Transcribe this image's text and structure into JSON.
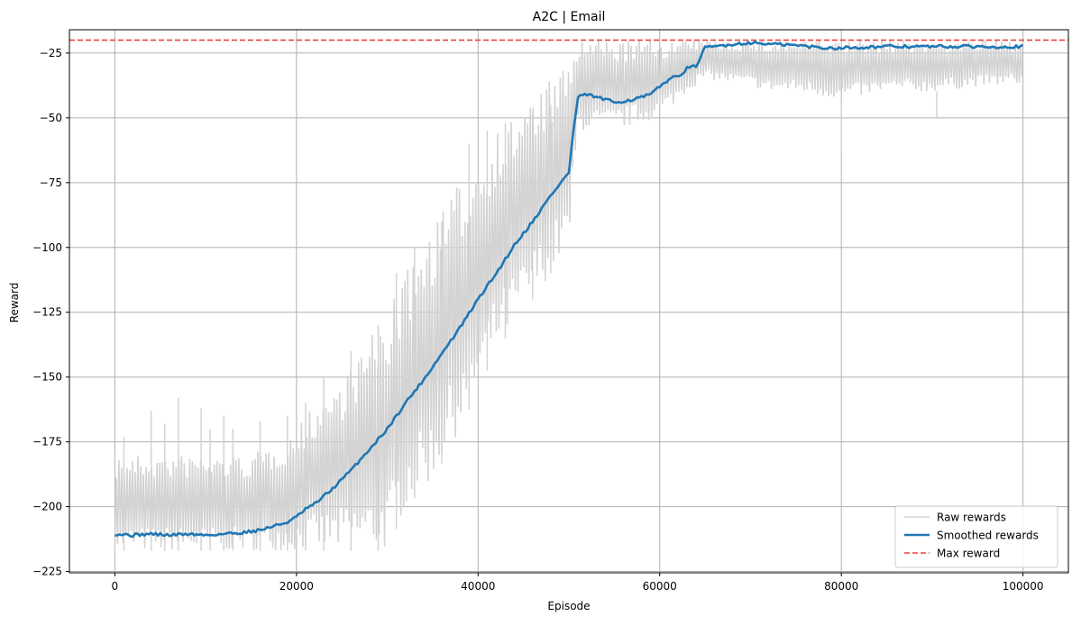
{
  "chart_data": {
    "type": "line",
    "title": "A2C | Email",
    "xlabel": "Episode",
    "ylabel": "Reward",
    "xlim": [
      -5000,
      105000
    ],
    "ylim": [
      -225.5,
      -16
    ],
    "xticks": [
      0,
      20000,
      40000,
      60000,
      80000,
      100000
    ],
    "xtick_labels": [
      "0",
      "20000",
      "40000",
      "60000",
      "80000",
      "100000"
    ],
    "yticks": [
      -225,
      -200,
      -175,
      -150,
      -125,
      -100,
      -75,
      -50,
      -25
    ],
    "ytick_labels": [
      "−225",
      "−200",
      "−175",
      "−150",
      "−125",
      "−100",
      "−75",
      "−50",
      "−25"
    ],
    "grid": true,
    "legend_position": "lower right",
    "series": [
      {
        "name": "Raw rewards",
        "kind": "band",
        "color": "#d3d3d3",
        "x": [
          0,
          5000,
          10000,
          15000,
          18000,
          20000,
          22000,
          25000,
          28000,
          30000,
          32000,
          35000,
          38000,
          40000,
          42000,
          45000,
          48000,
          50000,
          50500,
          51000,
          55000,
          60000,
          63000,
          65000,
          70000,
          72000,
          75000,
          80000,
          85000,
          90000,
          95000,
          100000
        ],
        "lower": [
          -217,
          -217,
          -217,
          -217,
          -217,
          -217,
          -217,
          -217,
          -217,
          -217,
          -200,
          -190,
          -170,
          -155,
          -140,
          -125,
          -110,
          -100,
          -80,
          -55,
          -55,
          -50,
          -40,
          -35,
          -38,
          -40,
          -40,
          -43,
          -40,
          -40,
          -38,
          -37
        ],
        "upper": [
          -180,
          -180,
          -180,
          -180,
          -175,
          -170,
          -160,
          -150,
          -135,
          -125,
          -110,
          -90,
          -75,
          -65,
          -55,
          -45,
          -35,
          -30,
          -20,
          -20,
          -20,
          -20,
          -20,
          -20,
          -20,
          -20,
          -20,
          -20,
          -20,
          -20,
          -20,
          -20
        ],
        "spikes": [
          [
            1000,
            -173
          ],
          [
            4000,
            -163
          ],
          [
            5500,
            -168
          ],
          [
            7000,
            -158
          ],
          [
            9500,
            -162
          ],
          [
            10500,
            -170
          ],
          [
            12000,
            -165
          ],
          [
            13000,
            -170
          ],
          [
            16000,
            -167
          ],
          [
            19000,
            -165
          ],
          [
            21000,
            -160
          ],
          [
            23000,
            -150
          ],
          [
            26000,
            -140
          ],
          [
            29000,
            -130
          ],
          [
            31000,
            -110
          ],
          [
            33000,
            -100
          ],
          [
            36000,
            -90
          ],
          [
            39000,
            -60
          ],
          [
            41000,
            -55
          ],
          [
            43000,
            -52
          ],
          [
            46000,
            -48
          ],
          [
            48000,
            -45
          ],
          [
            80000,
            -63
          ],
          [
            90500,
            -50
          ]
        ]
      },
      {
        "name": "Smoothed rewards",
        "kind": "line",
        "color": "#1f77b4",
        "x": [
          0,
          2000,
          4000,
          6000,
          8000,
          10000,
          12000,
          14000,
          16000,
          17000,
          18000,
          19000,
          20000,
          21000,
          22000,
          24000,
          26000,
          28000,
          30000,
          32000,
          34000,
          36000,
          38000,
          40000,
          42000,
          44000,
          46000,
          48000,
          50000,
          50500,
          51000,
          52000,
          53000,
          55000,
          57000,
          59000,
          61000,
          62000,
          63000,
          64000,
          65000,
          67000,
          70000,
          72000,
          75000,
          78000,
          80000,
          85000,
          90000,
          95000,
          100000
        ],
        "y": [
          -210.5,
          -211,
          -210.5,
          -211,
          -210.5,
          -211,
          -210.5,
          -210,
          -209,
          -208,
          -207,
          -206,
          -204,
          -201,
          -199,
          -193,
          -186,
          -178,
          -170,
          -160,
          -151,
          -141,
          -131,
          -120,
          -110,
          -99,
          -90,
          -80,
          -71,
          -55,
          -42,
          -41,
          -42,
          -44,
          -43,
          -41,
          -35,
          -34,
          -31,
          -30,
          -23,
          -22,
          -21,
          -21.5,
          -22,
          -23,
          -23,
          -22.5,
          -22.5,
          -22.5,
          -22.5
        ]
      },
      {
        "name": "Max reward",
        "kind": "hline",
        "color": "#e8413c",
        "y": -20
      }
    ]
  }
}
